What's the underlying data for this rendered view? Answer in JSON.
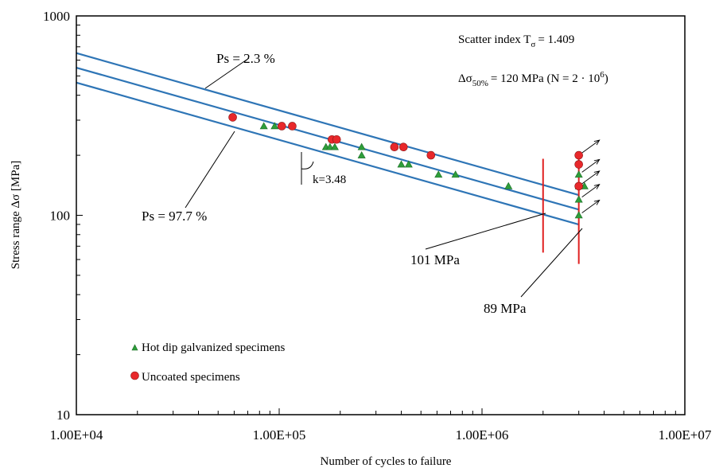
{
  "chart_data": {
    "type": "scatter",
    "xlabel": "Number of cycles to failure",
    "ylabel": "Stress range Δσ  [MPa]",
    "xscale": "log",
    "yscale": "log",
    "xlim": [
      10000,
      10000000
    ],
    "ylim": [
      10,
      1000
    ],
    "x_tick_labels": [
      "1.00E+04",
      "1.00E+05",
      "1.00E+06",
      "1.00E+07"
    ],
    "y_tick_labels": [
      "10",
      "100",
      "1000"
    ],
    "grid": false,
    "legend_position": "bottom-left",
    "colors": {
      "line": "#2e75b6",
      "marker_red": "#e8282b",
      "marker_green": "#2e9e3a",
      "vertical": "#e02020",
      "axis": "#000000"
    },
    "series": [
      {
        "name": "Hot dip galvanized specimens",
        "marker": "triangle",
        "color": "#2e9e3a",
        "points": [
          [
            84000,
            280
          ],
          [
            95000,
            280
          ],
          [
            170000,
            220
          ],
          [
            178000,
            220
          ],
          [
            188000,
            220
          ],
          [
            255000,
            220
          ],
          [
            255000,
            200
          ],
          [
            400000,
            180
          ],
          [
            435000,
            180
          ],
          [
            610000,
            160
          ],
          [
            740000,
            160
          ],
          [
            1350000,
            140
          ],
          [
            3000000,
            100
          ],
          [
            3000000,
            120
          ],
          [
            3000000,
            140
          ],
          [
            3000000,
            160
          ],
          [
            3200000,
            140
          ]
        ]
      },
      {
        "name": "Uncoated specimens",
        "marker": "circle",
        "color": "#e8282b",
        "points": [
          [
            59000,
            310
          ],
          [
            103000,
            280
          ],
          [
            116000,
            280
          ],
          [
            182000,
            240
          ],
          [
            192000,
            240
          ],
          [
            370000,
            220
          ],
          [
            410000,
            220
          ],
          [
            560000,
            200
          ],
          [
            3000000,
            200
          ],
          [
            3000000,
            180
          ],
          [
            3000000,
            140
          ]
        ]
      }
    ],
    "regression_lines": [
      {
        "label": "Ps = 2.3 %",
        "slope_k": 3.48,
        "stress_at_2e6": 142
      },
      {
        "label": "",
        "slope_k": 3.48,
        "stress_at_2e6": 120
      },
      {
        "label": "Ps = 97.7 %",
        "slope_k": 3.48,
        "stress_at_2e6": 101
      }
    ],
    "line_x_range": [
      10000,
      3000000
    ],
    "vertical_markers": [
      {
        "x": 2000000,
        "y_range": [
          65,
          192
        ]
      },
      {
        "x": 3000000,
        "y_range": [
          57,
          192
        ]
      }
    ],
    "runout_x": 3000000,
    "runout_stresses": [
      100,
      120,
      140,
      160,
      200
    ],
    "annotations": {
      "ps_top": "Ps = 2.3 %",
      "ps_bottom": "Ps = 97.7 %",
      "slope": "k=3.48",
      "mpa101": "101 MPa",
      "mpa89": "89 MPa"
    },
    "info": {
      "scatter_prefix": "Scatter index T",
      "scatter_sub": "σ",
      "scatter_value": "= 1.409",
      "median_prefix": "Δσ",
      "median_sub": "50%",
      "median_value": "= 120 MPa (N = 2 · 10",
      "median_exp": "6",
      "median_close": ")"
    }
  }
}
